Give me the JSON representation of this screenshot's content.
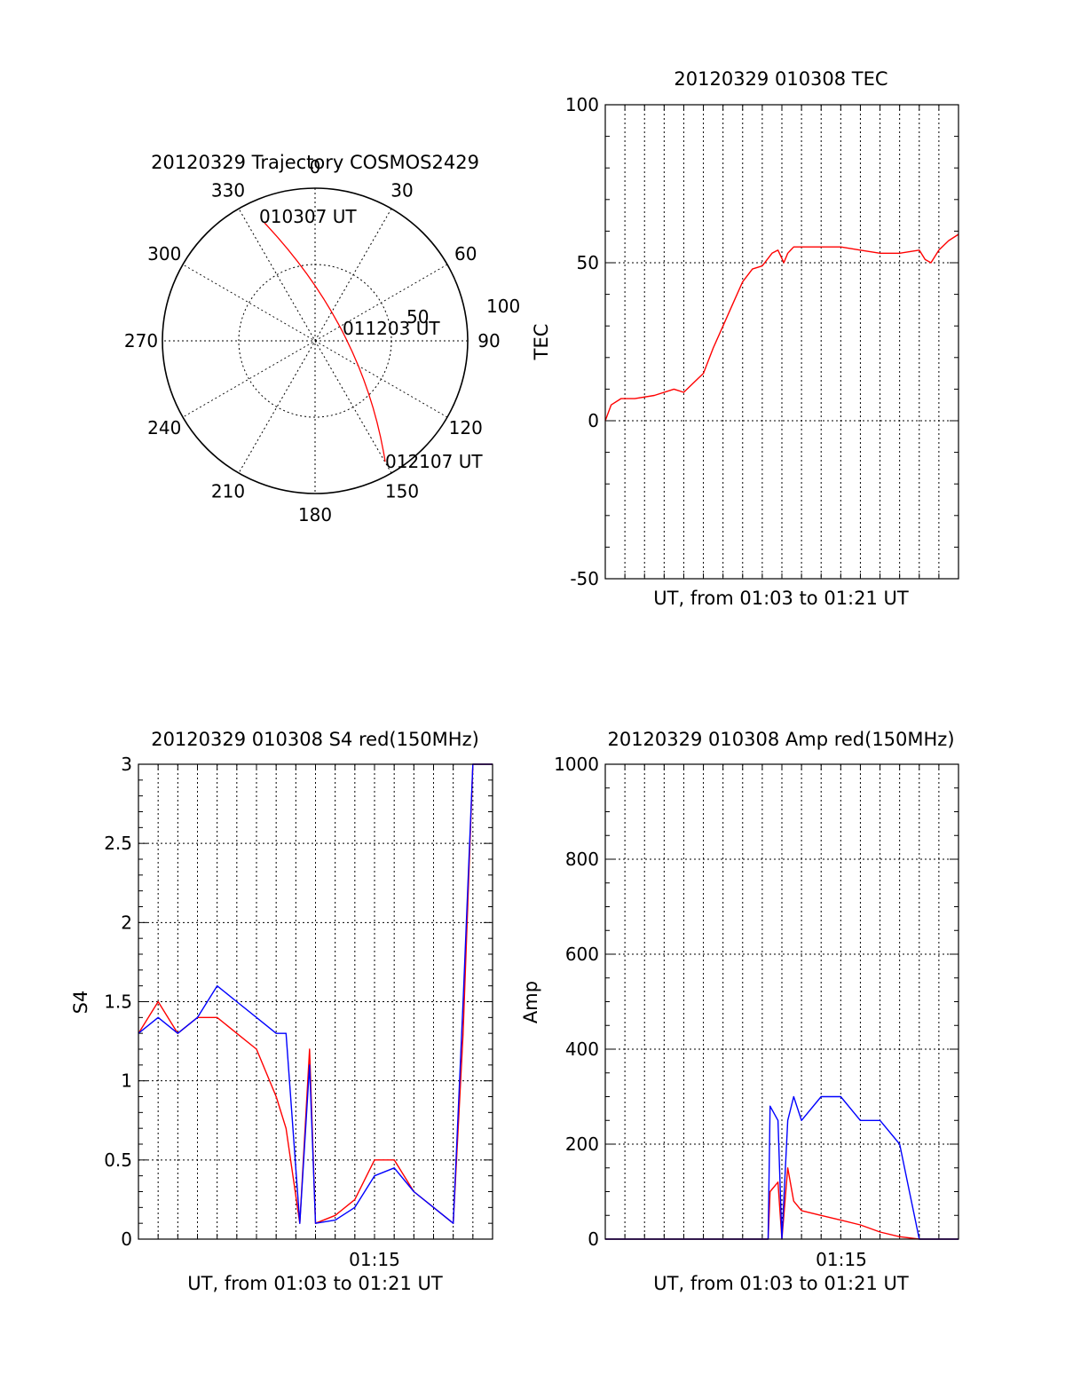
{
  "colors": {
    "red_series": "#ff0000",
    "blue_series": "#0000ff",
    "axes": "#000000",
    "background": "#ffffff"
  },
  "polar": {
    "title": "20120329 Trajectory COSMOS2429",
    "azimuth_labels": [
      "0",
      "30",
      "60",
      "90",
      "120",
      "150",
      "180",
      "210",
      "240",
      "270",
      "300",
      "330"
    ],
    "radius_labels": [
      "50",
      "100"
    ],
    "start_label": "010307 UT",
    "mid_label": "011203 UT",
    "end_label": "012107 UT"
  },
  "chart_data": [
    {
      "type": "line",
      "title": "20120329 010308 TEC",
      "xlabel": "UT, from 01:03 to 01:21 UT",
      "ylabel": "TEC",
      "xlim": [
        "01:03",
        "01:21"
      ],
      "ylim": [
        -50,
        100
      ],
      "yticks": [
        "100",
        "50",
        "0",
        "-50"
      ],
      "grid": true,
      "series": [
        {
          "color": "#ff0000",
          "x": [
            0.0,
            0.3,
            0.8,
            1.5,
            2.5,
            3.5,
            4.0,
            4.5,
            5.0,
            5.5,
            6.0,
            6.5,
            7.0,
            7.5,
            8.0,
            8.5,
            8.8,
            9.1,
            9.3,
            9.6,
            10.0,
            11.0,
            12.0,
            13.0,
            14.0,
            15.0,
            16.0,
            16.3,
            16.6,
            17.0,
            17.5,
            18.0
          ],
          "y": [
            0,
            5,
            7,
            7,
            8,
            10,
            9,
            12,
            15,
            23,
            30,
            37,
            44,
            48,
            49,
            53,
            54,
            50,
            53,
            55,
            55,
            55,
            55,
            54,
            53,
            53,
            54,
            51,
            50,
            54,
            57,
            59
          ]
        }
      ]
    },
    {
      "type": "line",
      "title": "20120329 010308 S4 red(150MHz)",
      "xlabel": "UT, from 01:03 to 01:21 UT",
      "ylabel": "S4",
      "xlim": [
        "01:03",
        "01:21"
      ],
      "ylim": [
        0,
        3
      ],
      "yticks": [
        "3",
        "2.5",
        "2",
        "1.5",
        "1",
        "0.5",
        "0"
      ],
      "xticks": [
        "01:15"
      ],
      "grid": true,
      "series": [
        {
          "color": "#ff0000",
          "x": [
            0.0,
            1.0,
            2.0,
            3.0,
            4.0,
            5.0,
            6.0,
            7.0,
            7.5,
            8.2,
            8.7,
            9.0,
            10.0,
            11.0,
            12.0,
            13.0,
            14.0,
            15.0,
            16.0,
            16.5,
            17.0,
            18.0
          ],
          "y": [
            1.3,
            1.5,
            1.3,
            1.4,
            1.4,
            1.3,
            1.2,
            0.9,
            0.7,
            0.1,
            1.2,
            0.1,
            0.15,
            0.25,
            0.5,
            0.5,
            0.3,
            0.2,
            0.1,
            1.3,
            3.0,
            3.0
          ]
        },
        {
          "color": "#0000ff",
          "x": [
            0.0,
            1.0,
            2.0,
            3.0,
            4.0,
            5.0,
            6.0,
            7.0,
            7.5,
            8.2,
            8.7,
            9.0,
            10.0,
            11.0,
            12.0,
            13.0,
            14.0,
            15.0,
            16.0,
            16.5,
            17.0,
            18.0
          ],
          "y": [
            1.3,
            1.4,
            1.3,
            1.4,
            1.6,
            1.5,
            1.4,
            1.3,
            1.3,
            0.1,
            1.1,
            0.1,
            0.12,
            0.2,
            0.4,
            0.45,
            0.3,
            0.2,
            0.1,
            1.5,
            3.0,
            3.0
          ]
        }
      ]
    },
    {
      "type": "line",
      "title": "20120329 010308 Amp red(150MHz)",
      "xlabel": "UT, from 01:03 to 01:21 UT",
      "ylabel": "Amp",
      "xlim": [
        "01:03",
        "01:21"
      ],
      "ylim": [
        0,
        1000
      ],
      "yticks": [
        "1000",
        "800",
        "600",
        "400",
        "200",
        "0"
      ],
      "xticks": [
        "01:15"
      ],
      "grid": true,
      "series": [
        {
          "color": "#ff0000",
          "x": [
            0.0,
            8.3,
            8.4,
            8.8,
            9.0,
            9.3,
            9.6,
            10.0,
            11.0,
            12.0,
            13.0,
            14.0,
            15.0,
            16.0,
            18.0
          ],
          "y": [
            0,
            0,
            100,
            120,
            0,
            150,
            80,
            60,
            50,
            40,
            30,
            15,
            5,
            0,
            0
          ]
        },
        {
          "color": "#0000ff",
          "x": [
            0.0,
            8.3,
            8.4,
            8.8,
            9.0,
            9.3,
            9.6,
            10.0,
            11.0,
            12.0,
            13.0,
            14.0,
            15.0,
            15.5,
            16.0,
            18.0
          ],
          "y": [
            0,
            0,
            280,
            250,
            0,
            250,
            300,
            250,
            300,
            300,
            250,
            250,
            200,
            100,
            0,
            0
          ]
        }
      ]
    }
  ]
}
